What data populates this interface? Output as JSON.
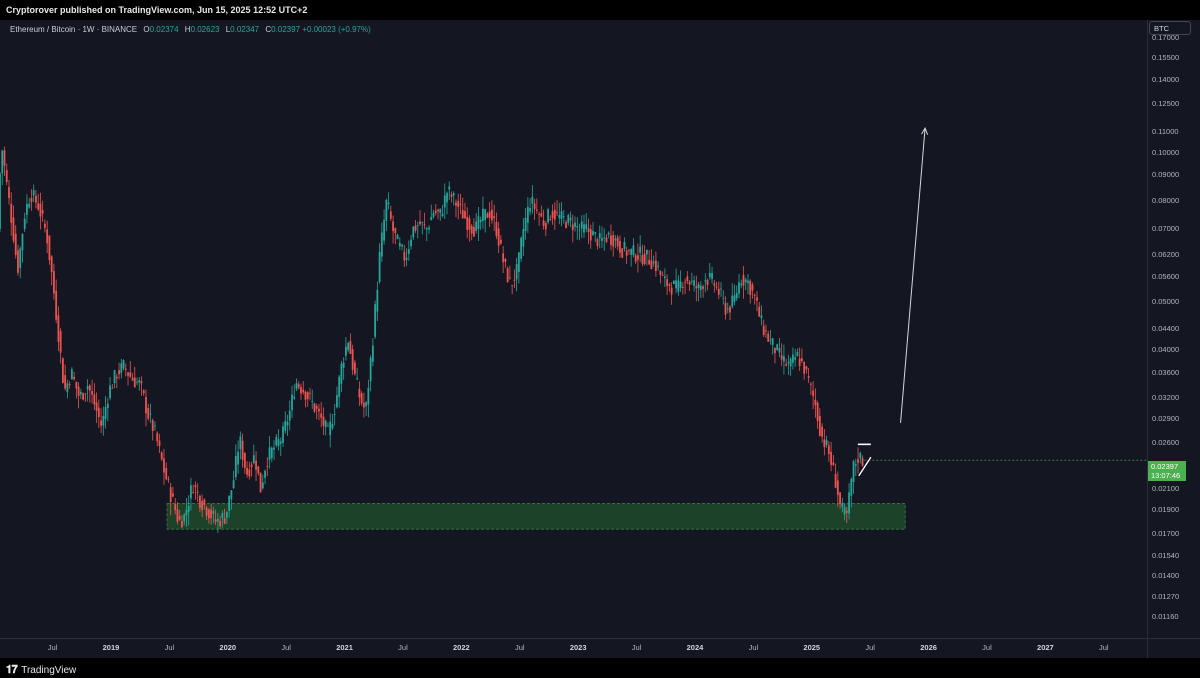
{
  "header": {
    "published": "Cryptorover published on TradingView.com, Jun 15, 2025 12:52 UTC+2"
  },
  "legend": {
    "symbol": "Ethereum / Bitcoin · 1W · BINANCE",
    "o_label": "O",
    "o": "0.02374",
    "h_label": "H",
    "h": "0.02623",
    "l_label": "L",
    "l": "0.02347",
    "c_label": "C",
    "c": "0.02397",
    "change": "+0.00023 (+0.97%)"
  },
  "currency": "BTC",
  "current_price": {
    "value": "0.02397",
    "countdown": "13:07:46"
  },
  "footer": {
    "brand": "TradingView"
  },
  "colors": {
    "up": "#26a69a",
    "down": "#ef5350",
    "zone": "#1e4a2e",
    "background": "#141722"
  },
  "chart_data": {
    "type": "candlestick",
    "scale": "log",
    "ylim": [
      0.0105,
      0.185
    ],
    "y_ticks": [
      "0.17000",
      "0.15500",
      "0.14000",
      "0.12500",
      "0.11000",
      "0.10000",
      "0.09000",
      "0.08000",
      "0.07000",
      "0.06200",
      "0.05600",
      "0.05000",
      "0.04400",
      "0.04000",
      "0.03600",
      "0.03200",
      "0.02900",
      "0.02600",
      "0.02100",
      "0.01900",
      "0.01700",
      "0.01540",
      "0.01400",
      "0.01270",
      "0.01160"
    ],
    "x_ticks": [
      {
        "label": "Jul",
        "t": 2018.5,
        "year": false
      },
      {
        "label": "2019",
        "t": 2019.0,
        "year": true
      },
      {
        "label": "Jul",
        "t": 2019.5,
        "year": false
      },
      {
        "label": "2020",
        "t": 2020.0,
        "year": true
      },
      {
        "label": "Jul",
        "t": 2020.5,
        "year": false
      },
      {
        "label": "2021",
        "t": 2021.0,
        "year": true
      },
      {
        "label": "Jul",
        "t": 2021.5,
        "year": false
      },
      {
        "label": "2022",
        "t": 2022.0,
        "year": true
      },
      {
        "label": "Jul",
        "t": 2022.5,
        "year": false
      },
      {
        "label": "2023",
        "t": 2023.0,
        "year": true
      },
      {
        "label": "Jul",
        "t": 2023.5,
        "year": false
      },
      {
        "label": "2024",
        "t": 2024.0,
        "year": true
      },
      {
        "label": "Jul",
        "t": 2024.5,
        "year": false
      },
      {
        "label": "2025",
        "t": 2025.0,
        "year": true
      },
      {
        "label": "Jul",
        "t": 2025.5,
        "year": false
      },
      {
        "label": "2026",
        "t": 2026.0,
        "year": true
      },
      {
        "label": "Jul",
        "t": 2026.5,
        "year": false
      },
      {
        "label": "2027",
        "t": 2027.0,
        "year": true
      },
      {
        "label": "Jul",
        "t": 2027.5,
        "year": false
      }
    ],
    "xlim": [
      2018.05,
      2027.87
    ],
    "price_path": [
      [
        2018.05,
        0.07
      ],
      [
        2018.08,
        0.105
      ],
      [
        2018.13,
        0.085
      ],
      [
        2018.18,
        0.07
      ],
      [
        2018.22,
        0.058
      ],
      [
        2018.28,
        0.075
      ],
      [
        2018.33,
        0.083
      ],
      [
        2018.4,
        0.078
      ],
      [
        2018.47,
        0.068
      ],
      [
        2018.52,
        0.055
      ],
      [
        2018.57,
        0.043
      ],
      [
        2018.62,
        0.033
      ],
      [
        2018.68,
        0.036
      ],
      [
        2018.75,
        0.032
      ],
      [
        2018.82,
        0.034
      ],
      [
        2018.88,
        0.031
      ],
      [
        2018.94,
        0.028
      ],
      [
        2019.0,
        0.033
      ],
      [
        2019.07,
        0.036
      ],
      [
        2019.13,
        0.037
      ],
      [
        2019.2,
        0.035
      ],
      [
        2019.27,
        0.034
      ],
      [
        2019.33,
        0.03
      ],
      [
        2019.4,
        0.027
      ],
      [
        2019.47,
        0.023
      ],
      [
        2019.53,
        0.0205
      ],
      [
        2019.6,
        0.018
      ],
      [
        2019.65,
        0.0185
      ],
      [
        2019.72,
        0.0215
      ],
      [
        2019.78,
        0.02
      ],
      [
        2019.85,
        0.019
      ],
      [
        2019.92,
        0.018
      ],
      [
        2020.0,
        0.0185
      ],
      [
        2020.07,
        0.022
      ],
      [
        2020.12,
        0.0265
      ],
      [
        2020.18,
        0.0225
      ],
      [
        2020.25,
        0.0245
      ],
      [
        2020.3,
        0.021
      ],
      [
        2020.35,
        0.024
      ],
      [
        2020.42,
        0.0255
      ],
      [
        2020.48,
        0.0265
      ],
      [
        2020.55,
        0.03
      ],
      [
        2020.6,
        0.0345
      ],
      [
        2020.68,
        0.033
      ],
      [
        2020.75,
        0.031
      ],
      [
        2020.82,
        0.029
      ],
      [
        2020.88,
        0.027
      ],
      [
        2020.94,
        0.031
      ],
      [
        2021.0,
        0.038
      ],
      [
        2021.05,
        0.042
      ],
      [
        2021.1,
        0.036
      ],
      [
        2021.15,
        0.032
      ],
      [
        2021.2,
        0.03
      ],
      [
        2021.26,
        0.042
      ],
      [
        2021.32,
        0.062
      ],
      [
        2021.38,
        0.08
      ],
      [
        2021.43,
        0.07
      ],
      [
        2021.48,
        0.065
      ],
      [
        2021.54,
        0.061
      ],
      [
        2021.6,
        0.07
      ],
      [
        2021.66,
        0.072
      ],
      [
        2021.72,
        0.07
      ],
      [
        2021.78,
        0.076
      ],
      [
        2021.84,
        0.075
      ],
      [
        2021.9,
        0.084
      ],
      [
        2021.96,
        0.08
      ],
      [
        2022.02,
        0.076
      ],
      [
        2022.08,
        0.072
      ],
      [
        2022.14,
        0.07
      ],
      [
        2022.2,
        0.074
      ],
      [
        2022.26,
        0.076
      ],
      [
        2022.32,
        0.07
      ],
      [
        2022.38,
        0.06
      ],
      [
        2022.44,
        0.054
      ],
      [
        2022.5,
        0.058
      ],
      [
        2022.55,
        0.07
      ],
      [
        2022.61,
        0.08
      ],
      [
        2022.67,
        0.076
      ],
      [
        2022.73,
        0.072
      ],
      [
        2022.79,
        0.076
      ],
      [
        2022.85,
        0.074
      ],
      [
        2022.91,
        0.073
      ],
      [
        2022.97,
        0.072
      ],
      [
        2023.03,
        0.07
      ],
      [
        2023.09,
        0.07
      ],
      [
        2023.15,
        0.068
      ],
      [
        2023.21,
        0.066
      ],
      [
        2023.27,
        0.068
      ],
      [
        2023.33,
        0.067
      ],
      [
        2023.39,
        0.064
      ],
      [
        2023.45,
        0.063
      ],
      [
        2023.51,
        0.0625
      ],
      [
        2023.57,
        0.062
      ],
      [
        2023.63,
        0.061
      ],
      [
        2023.69,
        0.059
      ],
      [
        2023.75,
        0.055
      ],
      [
        2023.81,
        0.054
      ],
      [
        2023.87,
        0.053
      ],
      [
        2023.93,
        0.056
      ],
      [
        2023.99,
        0.0545
      ],
      [
        2024.05,
        0.053
      ],
      [
        2024.11,
        0.056
      ],
      [
        2024.17,
        0.055
      ],
      [
        2024.23,
        0.052
      ],
      [
        2024.29,
        0.048
      ],
      [
        2024.35,
        0.05
      ],
      [
        2024.41,
        0.056
      ],
      [
        2024.47,
        0.055
      ],
      [
        2024.53,
        0.051
      ],
      [
        2024.59,
        0.045
      ],
      [
        2024.65,
        0.042
      ],
      [
        2024.71,
        0.04
      ],
      [
        2024.77,
        0.038
      ],
      [
        2024.83,
        0.037
      ],
      [
        2024.89,
        0.039
      ],
      [
        2024.95,
        0.037
      ],
      [
        2025.0,
        0.034
      ],
      [
        2025.05,
        0.031
      ],
      [
        2025.1,
        0.027
      ],
      [
        2025.16,
        0.025
      ],
      [
        2025.22,
        0.022
      ],
      [
        2025.27,
        0.019
      ],
      [
        2025.32,
        0.0185
      ],
      [
        2025.37,
        0.023
      ],
      [
        2025.42,
        0.0245
      ],
      [
        2025.45,
        0.024
      ]
    ],
    "support_zone": {
      "t_start": 2019.48,
      "t_end": 2025.8,
      "low": 0.0174,
      "high": 0.0196
    },
    "projection": {
      "t_start": 2025.76,
      "p_start": 0.0285,
      "t_end": 2025.97,
      "p_end": 0.112
    },
    "last_price": 0.02397
  }
}
